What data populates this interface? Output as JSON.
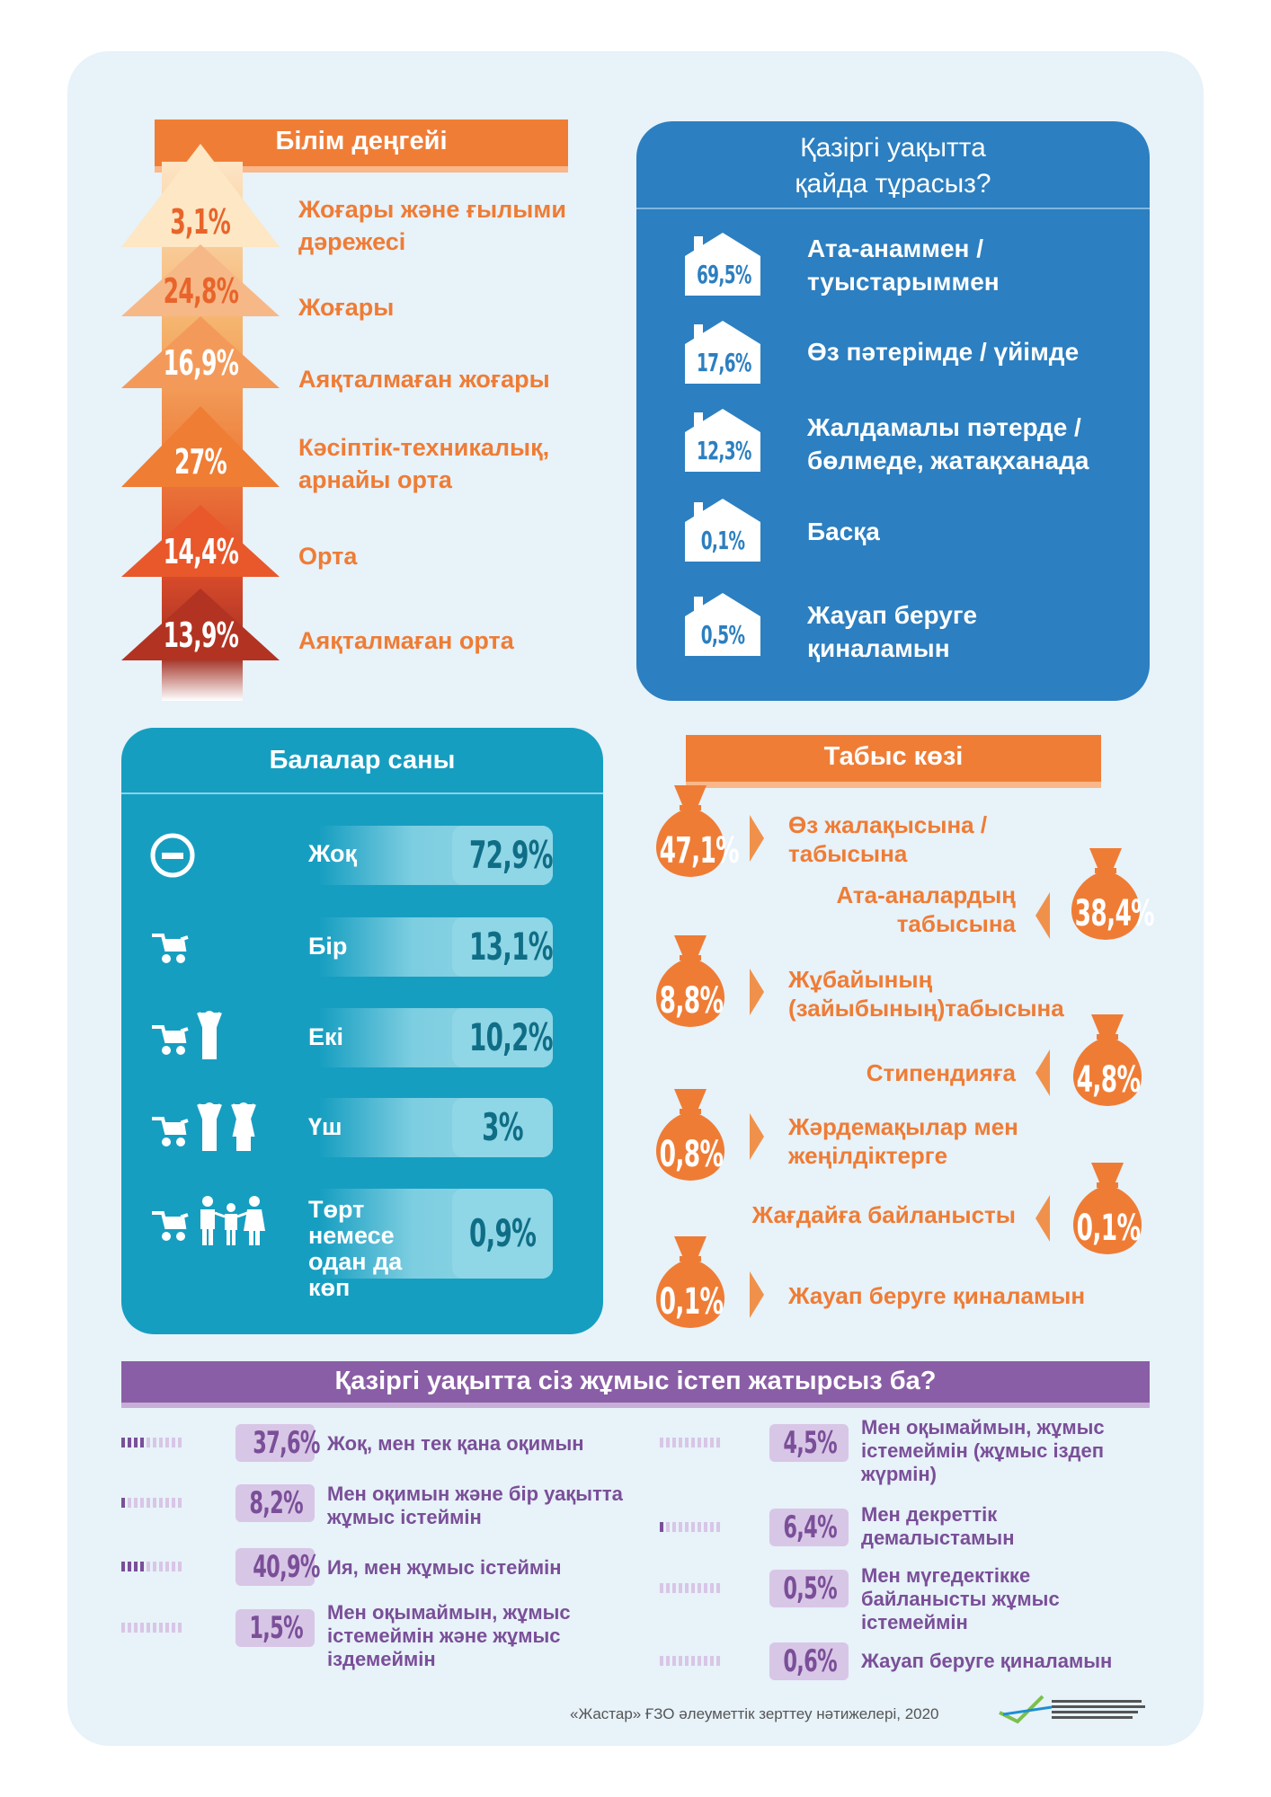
{
  "education": {
    "title": "Білім деңгейі",
    "items": [
      {
        "value": "3,1%",
        "label": "Жоғары және ғылыми дәрежесі",
        "color": "#fde7c4",
        "text_color": "#e8642b"
      },
      {
        "value": "24,8%",
        "label": "Жоғары",
        "color": "#f7b887",
        "text_color": "#e8642b"
      },
      {
        "value": "16,9%",
        "label": "Аяқталмаған жоғары",
        "color": "#f39a5a",
        "text_color": "#ffffff"
      },
      {
        "value": "27%",
        "label": "Кәсіптік-техникалық, арнайы орта",
        "color": "#ef7d34",
        "text_color": "#ffffff"
      },
      {
        "value": "14,4%",
        "label": "Орта",
        "color": "#e8582b",
        "text_color": "#ffffff"
      },
      {
        "value": "13,9%",
        "label": "Аяқталмаған орта",
        "color": "#b23322",
        "text_color": "#ffffff"
      }
    ]
  },
  "residence": {
    "title": "Қазіргі уақытта қайда тұрасыз?",
    "items": [
      {
        "value": "69,5%",
        "label": "Ата-анаммен / туыстарыммен"
      },
      {
        "value": "17,6%",
        "label": "Өз пәтерімде / үйімде"
      },
      {
        "value": "12,3%",
        "label": "Жалдамалы пәтерде / бөлмеде, жатақханада"
      },
      {
        "value": "0,1%",
        "label": "Басқа"
      },
      {
        "value": "0,5%",
        "label": "Жауап беруге қиналамын"
      }
    ]
  },
  "children": {
    "title": "Балалар саны",
    "items": [
      {
        "value": "72,9%",
        "label": "Жоқ",
        "icon": "no-entry-icon"
      },
      {
        "value": "13,1%",
        "label": "Бір",
        "icon": "stroller-icon"
      },
      {
        "value": "10,2%",
        "label": "Екі",
        "icon": "stroller-and-child-icon"
      },
      {
        "value": "3%",
        "label": "Үш",
        "icon": "stroller-and-two-children-icon"
      },
      {
        "value": "0,9%",
        "label": "Төрт немесе одан да көп",
        "icon": "stroller-and-family-icon"
      }
    ]
  },
  "income": {
    "title": "Табыс көзі",
    "items": [
      {
        "value": "47,1%",
        "label": "Өз жалақысына / табысына"
      },
      {
        "value": "38,4%",
        "label": "Ата-аналардың табысына"
      },
      {
        "value": "8,8%",
        "label": "Жұбайының (зайыбының)табысына"
      },
      {
        "value": "4,8%",
        "label": "Стипендияға"
      },
      {
        "value": "0,8%",
        "label": "Жәрдемақылар мен жеңілдіктерге"
      },
      {
        "value": "0,1%",
        "label": "Жағдайға байланысты"
      },
      {
        "value": "0,1%",
        "label": "Жауап беруге қиналамын"
      }
    ]
  },
  "work": {
    "title": "Қазіргі уақытта сіз жұмыс істеп жатырсыз ба?",
    "items": [
      {
        "value": "37,6%",
        "label": "Жоқ, мен тек қана оқимын",
        "level": 0.376
      },
      {
        "value": "8,2%",
        "label": "Мен оқимын және бір уақытта жұмыс істеймін",
        "level": 0.082
      },
      {
        "value": "40,9%",
        "label": "Ия, мен жұмыс істеймін",
        "level": 0.409
      },
      {
        "value": "1,5%",
        "label": "Мен оқымаймын, жұмыс істемеймін және жұмыс іздемеймін",
        "level": 0.015
      },
      {
        "value": "4,5%",
        "label": "Мен оқымаймын, жұмыс істемеймін (жұмыс іздеп жүрмін)",
        "level": 0.045
      },
      {
        "value": "6,4%",
        "label": "Мен декреттік демалыстамын",
        "level": 0.064
      },
      {
        "value": "0,5%",
        "label": "Мен мүгедектікке байланысты жұмыс істемеймін",
        "level": 0.005
      },
      {
        "value": "0,6%",
        "label": "Жауап беруге қиналамын",
        "level": 0.006
      }
    ]
  },
  "footer": {
    "source": "«Жастар» ҒЗО әлеуметтік зерттеу нәтижелері, 2020"
  },
  "colors": {
    "orange": "#f07d36",
    "blue": "#2c7fc0",
    "teal": "#169ec1",
    "purple": "#8a5ea6",
    "background": "#e7f2f9"
  }
}
